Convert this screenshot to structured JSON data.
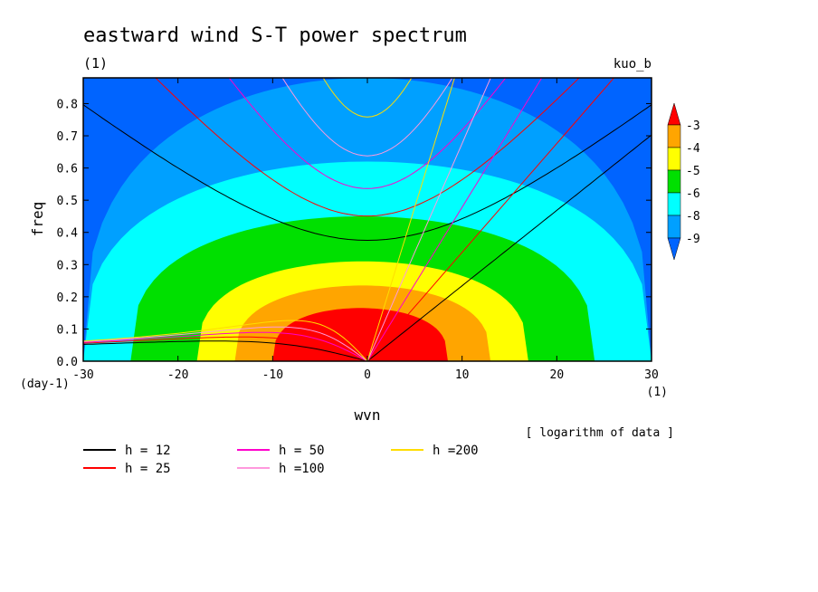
{
  "chart_data": {
    "type": "heatmap",
    "title": "eastward wind S-T power spectrum",
    "subtitle": "(1)",
    "run_label": "kuo_b",
    "xlabel": "wvn",
    "x_unit": "(1)",
    "ylabel": "freq",
    "y_unit": "(day-1)",
    "xlim": [
      -30,
      30
    ],
    "ylim": [
      0,
      0.88
    ],
    "x_ticks": [
      -30,
      -20,
      -10,
      0,
      10,
      20,
      30
    ],
    "y_ticks": [
      0.0,
      0.1,
      0.2,
      0.3,
      0.4,
      0.5,
      0.6,
      0.7,
      0.8
    ],
    "note": "[ logarithm of data ]",
    "colorbar": {
      "levels": [
        "-3",
        "-4",
        "-5",
        "-6",
        "-8",
        "-9"
      ],
      "colors": [
        "#ff0000",
        "#ffa500",
        "#ffff00",
        "#00e000",
        "#00ffff",
        "#00a0ff",
        "#0064ff"
      ]
    },
    "contour_fill": {
      "center": [
        -2,
        0.0
      ],
      "bands": [
        {
          "level": "-3",
          "color": "#ff0000",
          "x_extent": [
            -10,
            8.5
          ],
          "y_top": 0.165
        },
        {
          "level": "-4",
          "color": "#ffa500",
          "x_extent": [
            -14,
            13
          ],
          "y_top": 0.235
        },
        {
          "level": "-5",
          "color": "#ffff00",
          "x_extent": [
            -18,
            17
          ],
          "y_top": 0.31
        },
        {
          "level": "-6",
          "color": "#00e000",
          "x_extent": [
            -25,
            24
          ],
          "y_top": 0.45
        },
        {
          "level": "-8",
          "color": "#00ffff",
          "x_extent": [
            -30,
            30
          ],
          "y_top": 0.62
        },
        {
          "level": "-9",
          "color": "#00a0ff",
          "x_extent": [
            -30,
            30
          ],
          "y_top": 0.88
        }
      ]
    },
    "dispersion_curves": [
      {
        "name": "h = 12",
        "h": 12,
        "color": "#000000"
      },
      {
        "name": "h = 25",
        "h": 25,
        "color": "#ff0000"
      },
      {
        "name": "h = 50",
        "h": 50,
        "color": "#ff00cc"
      },
      {
        "name": "h =100",
        "h": 100,
        "color": "#ff99dd"
      },
      {
        "name": "h =200",
        "h": 200,
        "color": "#ffdd00"
      }
    ]
  }
}
